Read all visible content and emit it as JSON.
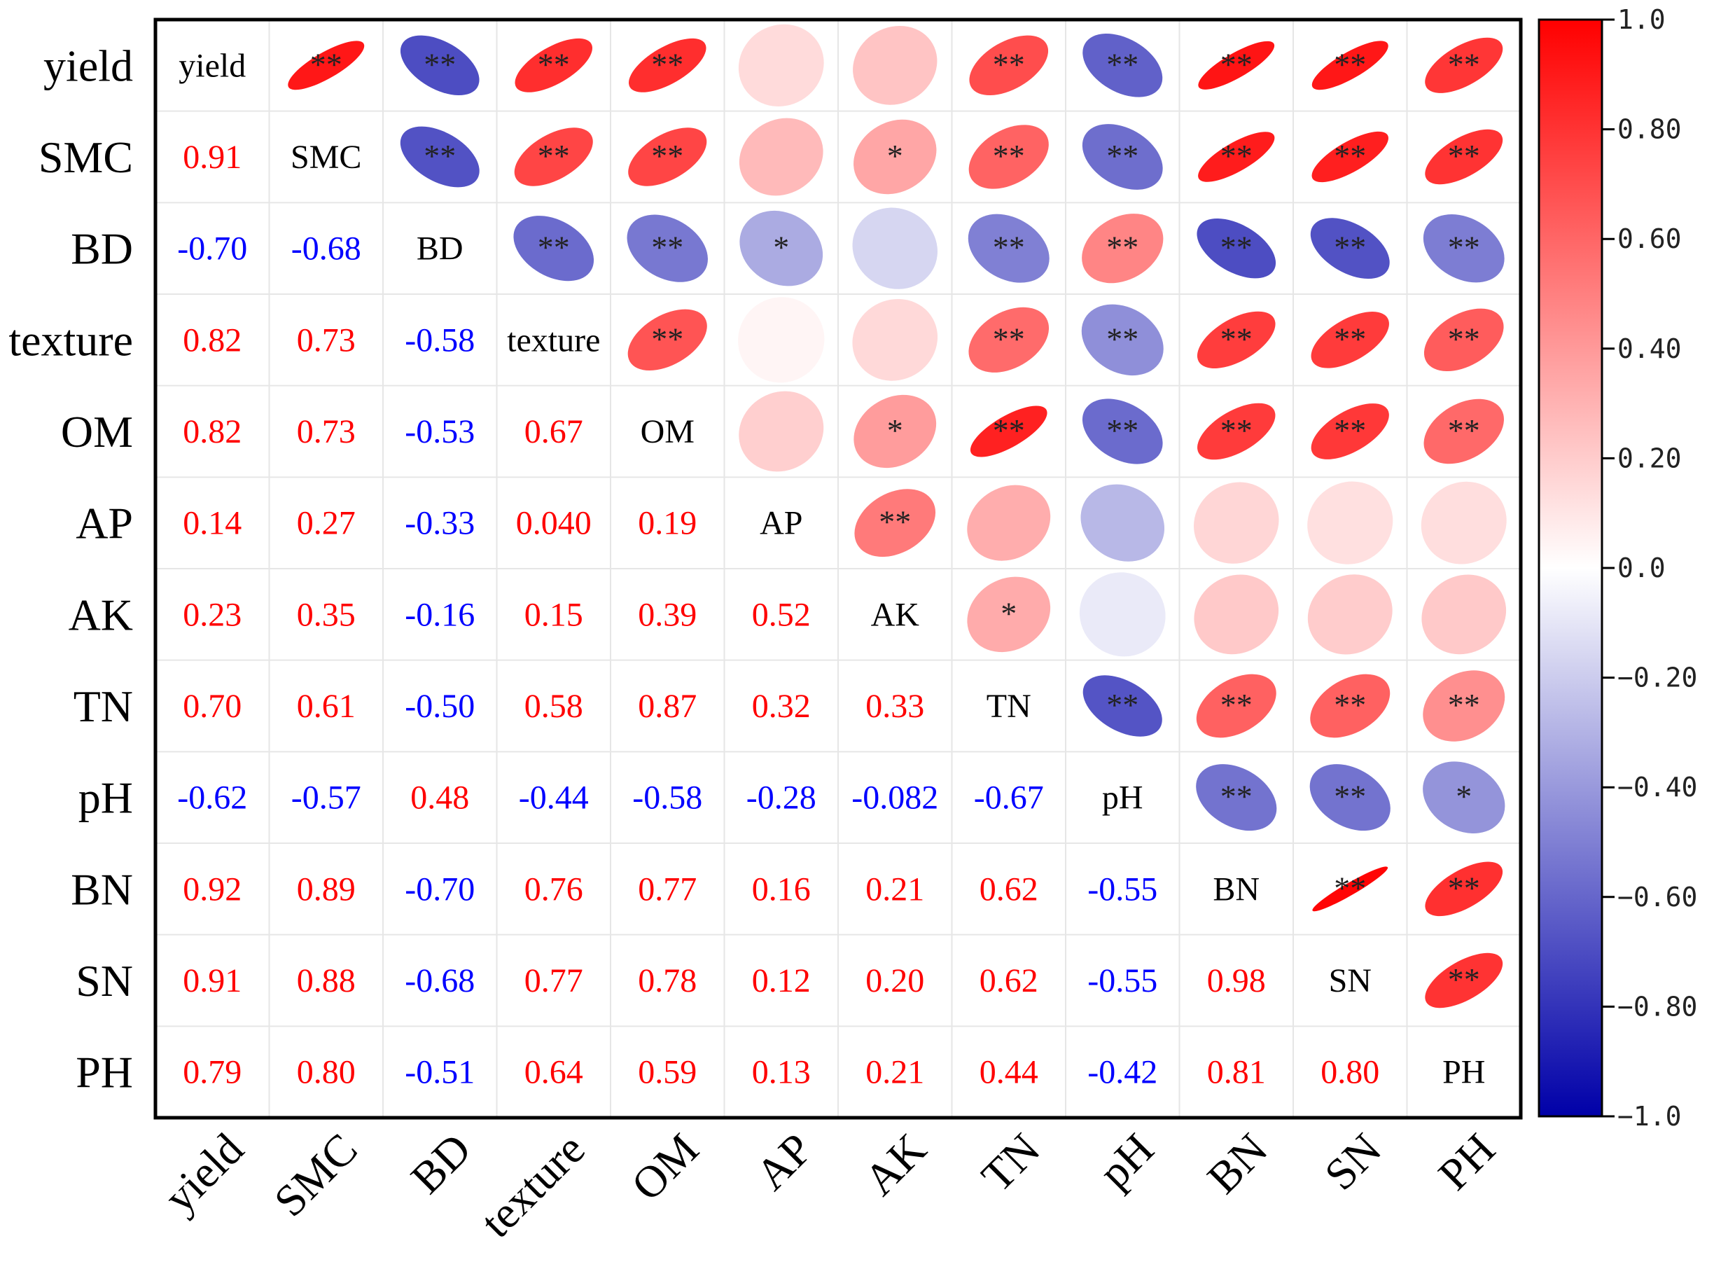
{
  "chart_data": {
    "type": "heatmap",
    "title": "",
    "variables": [
      "yield",
      "SMC",
      "BD",
      "texture",
      "OM",
      "AP",
      "AK",
      "TN",
      "pH",
      "BN",
      "SN",
      "PH"
    ],
    "lower_labels": [
      [],
      [
        "0.91"
      ],
      [
        "-0.70",
        "-0.68"
      ],
      [
        "0.82",
        "0.73",
        "-0.58"
      ],
      [
        "0.82",
        "0.73",
        "-0.53",
        "0.67"
      ],
      [
        "0.14",
        "0.27",
        "-0.33",
        "0.040",
        "0.19"
      ],
      [
        "0.23",
        "0.35",
        "-0.16",
        "0.15",
        "0.39",
        "0.52"
      ],
      [
        "0.70",
        "0.61",
        "-0.50",
        "0.58",
        "0.87",
        "0.32",
        "0.33"
      ],
      [
        "-0.62",
        "-0.57",
        "0.48",
        "-0.44",
        "-0.58",
        "-0.28",
        "-0.082",
        "-0.67"
      ],
      [
        "0.92",
        "0.89",
        "-0.70",
        "0.76",
        "0.77",
        "0.16",
        "0.21",
        "0.62",
        "-0.55"
      ],
      [
        "0.91",
        "0.88",
        "-0.68",
        "0.77",
        "0.78",
        "0.12",
        "0.20",
        "0.62",
        "-0.55",
        "0.98"
      ],
      [
        "0.79",
        "0.80",
        "-0.51",
        "0.64",
        "0.59",
        "0.13",
        "0.21",
        "0.44",
        "-0.42",
        "0.81",
        "0.80"
      ]
    ],
    "significance": [
      [
        "",
        "**",
        "**",
        "**",
        "**",
        "",
        "",
        "**",
        "**",
        "**",
        "**",
        "**"
      ],
      [
        "",
        "",
        "**",
        "**",
        "**",
        "",
        "*",
        "**",
        "**",
        "**",
        "**",
        "**"
      ],
      [
        "",
        "",
        "",
        "**",
        "**",
        "*",
        "",
        "**",
        "**",
        "**",
        "**",
        "**"
      ],
      [
        "",
        "",
        "",
        "",
        "**",
        "",
        "",
        "**",
        "**",
        "**",
        "**",
        "**"
      ],
      [
        "",
        "",
        "",
        "",
        "",
        "",
        "*",
        "**",
        "**",
        "**",
        "**",
        "**"
      ],
      [
        "",
        "",
        "",
        "",
        "",
        "",
        "**",
        "",
        "",
        "",
        "",
        ""
      ],
      [
        "",
        "",
        "",
        "",
        "",
        "",
        "",
        "*",
        "",
        "",
        "",
        ""
      ],
      [
        "",
        "",
        "",
        "",
        "",
        "",
        "",
        "",
        "**",
        "**",
        "**",
        "**"
      ],
      [
        "",
        "",
        "",
        "",
        "",
        "",
        "",
        "",
        "",
        "**",
        "**",
        "*"
      ],
      [
        "",
        "",
        "",
        "",
        "",
        "",
        "",
        "",
        "",
        "",
        "**",
        "**"
      ],
      [
        "",
        "",
        "",
        "",
        "",
        "",
        "",
        "",
        "",
        "",
        "",
        "**"
      ],
      [
        "",
        "",
        "",
        "",
        "",
        "",
        "",
        "",
        "",
        "",
        "",
        ""
      ]
    ],
    "colorbar": {
      "range": [
        -1.0,
        1.0
      ],
      "ticks": [
        "1.0",
        "0.80",
        "0.60",
        "0.40",
        "0.20",
        "0.0",
        "-0.20",
        "-0.40",
        "-0.60",
        "-0.80",
        "-1.0"
      ],
      "colors": {
        "negative": "#0000a8",
        "zero": "#ffffff",
        "positive": "#ff0000"
      }
    },
    "text_colors": {
      "positive": "#ff0000",
      "negative": "#0000ff"
    },
    "grid": true,
    "legend": "right"
  }
}
